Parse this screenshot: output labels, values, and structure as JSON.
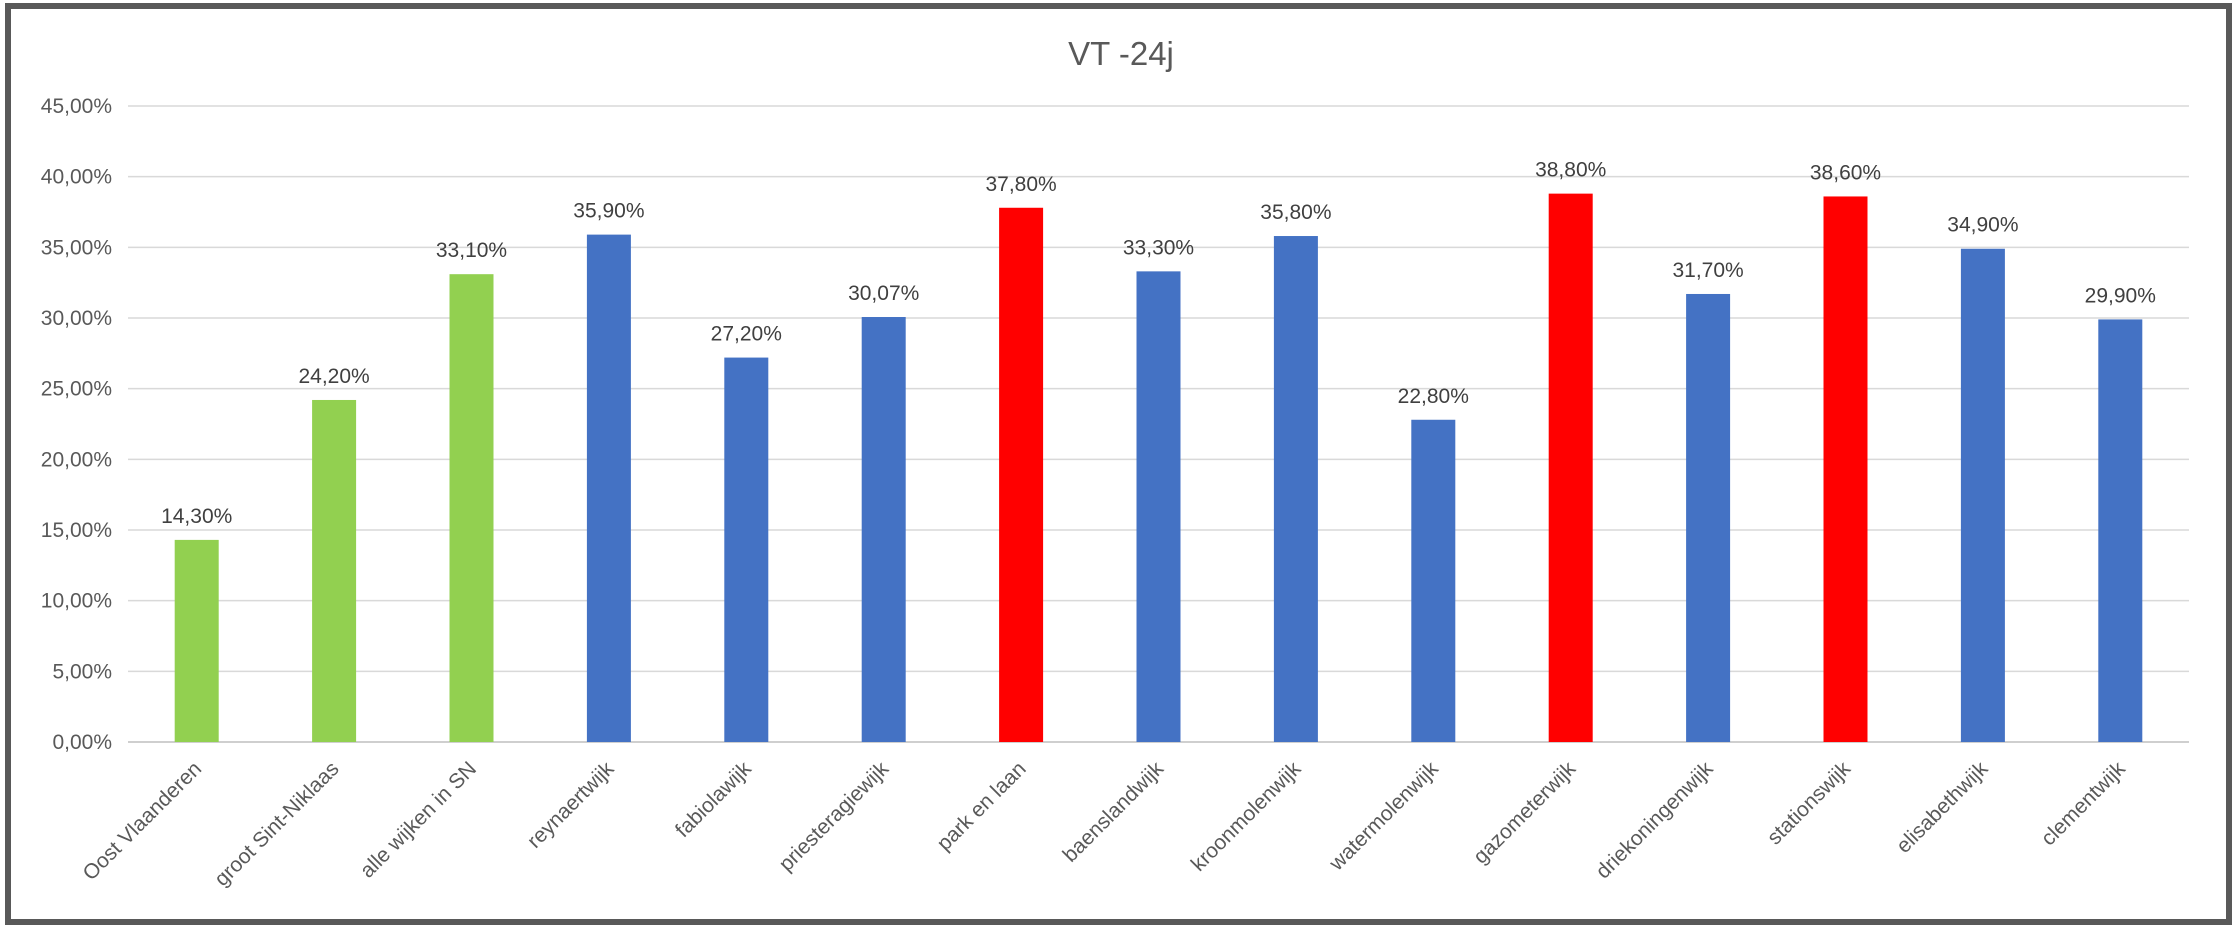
{
  "chart_data": {
    "type": "bar",
    "title": "VT -24j",
    "xlabel": "",
    "ylabel": "",
    "ylim": [
      0,
      45
    ],
    "ytick_step": 5,
    "ytick_labels": [
      "0,00%",
      "5,00%",
      "10,00%",
      "15,00%",
      "20,00%",
      "25,00%",
      "30,00%",
      "35,00%",
      "40,00%",
      "45,00%"
    ],
    "grid": true,
    "legend": "none",
    "categories": [
      "Oost Vlaanderen",
      "groot Sint-Niklaas",
      "alle wijken in SN",
      "reynaertwijk",
      "fabiolawijk",
      "priesteragiewijk",
      "park en laan",
      "baenslandwijk",
      "kroonmolenwijk",
      "watermolenwijk",
      "gazometerwijk",
      "driekoningenwijk",
      "stationswijk",
      "elisabethwijk",
      "clementwijk"
    ],
    "values": [
      14.3,
      24.2,
      33.1,
      35.9,
      27.2,
      30.07,
      37.8,
      33.3,
      35.8,
      22.8,
      38.8,
      31.7,
      38.6,
      34.9,
      29.9
    ],
    "value_labels": [
      "14,30%",
      "24,20%",
      "33,10%",
      "35,90%",
      "27,20%",
      "30,07%",
      "37,80%",
      "33,30%",
      "35,80%",
      "22,80%",
      "38,80%",
      "31,70%",
      "38,60%",
      "34,90%",
      "29,90%"
    ],
    "bar_colors": [
      "#92d050",
      "#92d050",
      "#92d050",
      "#4472c4",
      "#4472c4",
      "#4472c4",
      "#ff0000",
      "#4472c4",
      "#4472c4",
      "#4472c4",
      "#ff0000",
      "#4472c4",
      "#ff0000",
      "#4472c4",
      "#4472c4"
    ]
  }
}
